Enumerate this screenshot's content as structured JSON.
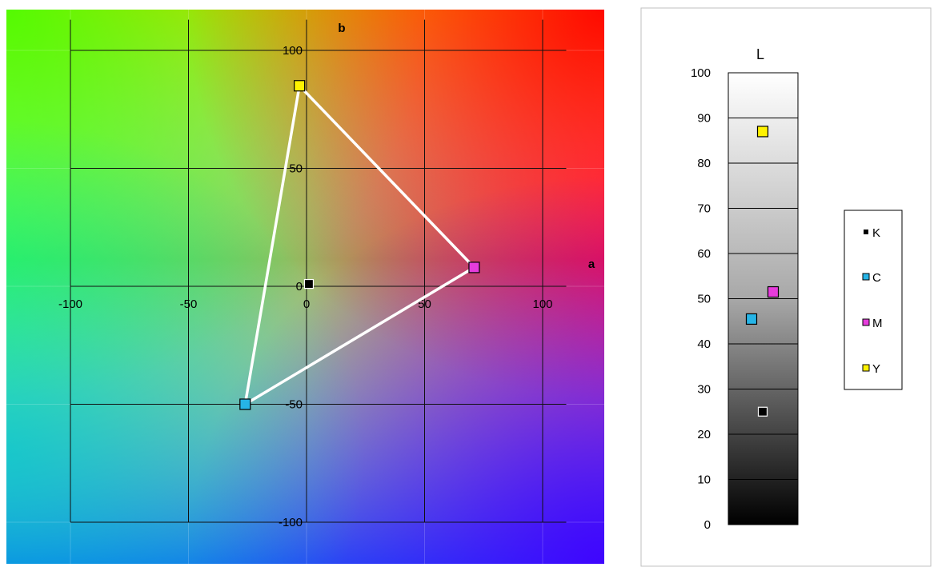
{
  "chart_data": [
    {
      "type": "scatter",
      "x_axis_label": "a",
      "y_axis_label": "b",
      "xlim": [
        -120,
        125
      ],
      "ylim": [
        -120,
        125
      ],
      "x_ticks": [
        -100,
        -50,
        0,
        50,
        100
      ],
      "y_ticks": [
        -100,
        -50,
        0,
        50,
        100
      ],
      "x_tick_labels": [
        "-100",
        "-50",
        "0",
        "50",
        "100"
      ],
      "y_tick_labels": [
        "-100",
        "-50",
        "0",
        "50",
        "100"
      ],
      "background": "a*b* color plane gradient",
      "grid": true,
      "series": [
        {
          "name": "K",
          "color": "#000000",
          "a": 1,
          "b": 1
        },
        {
          "name": "C",
          "color": "#26B4E6",
          "a": -26,
          "b": -50
        },
        {
          "name": "M",
          "color": "#E63CDC",
          "a": 71,
          "b": 8
        },
        {
          "name": "Y",
          "color": "#FFF200",
          "a": -3,
          "b": 85
        }
      ],
      "gamut_triangle": [
        "C",
        "M",
        "Y"
      ],
      "gamut_line_color": "#ffffff"
    },
    {
      "type": "scatter",
      "axis_label": "L",
      "ylim": [
        0,
        100
      ],
      "y_ticks": [
        0,
        10,
        20,
        30,
        40,
        50,
        60,
        70,
        80,
        90,
        100
      ],
      "y_tick_labels": [
        "0",
        "10",
        "20",
        "30",
        "40",
        "50",
        "60",
        "70",
        "80",
        "90",
        "100"
      ],
      "background": "lightness gradient black to white",
      "grid": true,
      "legend": "right",
      "legend_labels": [
        "K",
        "C",
        "M",
        "Y"
      ],
      "series": [
        {
          "name": "K",
          "color": "#000000",
          "L": 25
        },
        {
          "name": "C",
          "color": "#26B4E6",
          "L": 45.5
        },
        {
          "name": "M",
          "color": "#E63CDC",
          "L": 51.5
        },
        {
          "name": "Y",
          "color": "#FFF200",
          "L": 87
        }
      ]
    }
  ]
}
